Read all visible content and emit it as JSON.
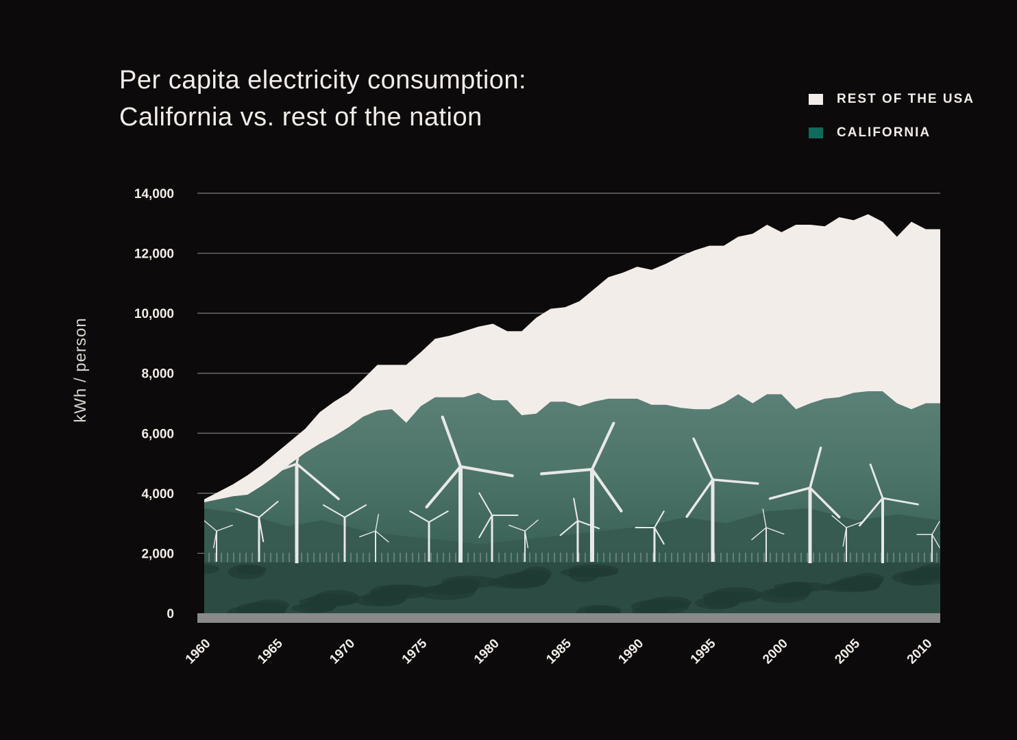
{
  "chart_data": {
    "type": "area",
    "title": [
      "Per capita electricity consumption:",
      "California vs. rest of the nation"
    ],
    "ylabel": "kWh / person",
    "xlabel": "",
    "ylim": [
      0,
      14000
    ],
    "xlim": [
      1960,
      2011
    ],
    "yticks": [
      0,
      2000,
      4000,
      6000,
      8000,
      10000,
      12000,
      14000
    ],
    "ytick_labels": [
      "0",
      "2,000",
      "4,000",
      "6,000",
      "8,000",
      "10,000",
      "12,000",
      "14,000"
    ],
    "xticks": [
      1960,
      1965,
      1970,
      1975,
      1980,
      1985,
      1990,
      1995,
      2000,
      2005,
      2010
    ],
    "xtick_labels": [
      "1960",
      "1965",
      "1970",
      "1975",
      "1980",
      "1985",
      "1990",
      "1995",
      "2000",
      "2005",
      "2010"
    ],
    "grid": true,
    "legend_position": "top-right",
    "x": [
      1960,
      1961,
      1962,
      1963,
      1964,
      1965,
      1966,
      1967,
      1968,
      1969,
      1970,
      1971,
      1972,
      1973,
      1974,
      1975,
      1976,
      1977,
      1978,
      1979,
      1980,
      1981,
      1982,
      1983,
      1984,
      1985,
      1986,
      1987,
      1988,
      1989,
      1990,
      1991,
      1992,
      1993,
      1994,
      1995,
      1996,
      1997,
      1998,
      1999,
      2000,
      2001,
      2002,
      2003,
      2004,
      2005,
      2006,
      2007,
      2008,
      2009,
      2010,
      2011
    ],
    "series": [
      {
        "name": "REST OF THE USA",
        "color": "#f3ede9",
        "values": [
          3800,
          4050,
          4300,
          4600,
          4950,
          5350,
          5750,
          6150,
          6700,
          7050,
          7350,
          7800,
          8280,
          8280,
          8280,
          8700,
          9150,
          9250,
          9400,
          9550,
          9650,
          9400,
          9400,
          9850,
          10150,
          10200,
          10400,
          10800,
          11200,
          11350,
          11550,
          11450,
          11650,
          11900,
          12100,
          12250,
          12250,
          12550,
          12650,
          12950,
          12700,
          12950,
          12950,
          12900,
          13200,
          13100,
          13300,
          13050,
          12550,
          13050,
          12800,
          12800
        ]
      },
      {
        "name": "CALIFORNIA",
        "color": "#0f6b5c",
        "values": [
          3700,
          3800,
          3900,
          3950,
          4250,
          4600,
          5000,
          5350,
          5650,
          5900,
          6200,
          6550,
          6750,
          6800,
          6350,
          6900,
          7200,
          7200,
          7200,
          7350,
          7100,
          7100,
          6600,
          6650,
          7050,
          7050,
          6900,
          7050,
          7150,
          7150,
          7150,
          6950,
          6950,
          6850,
          6800,
          6800,
          7000,
          7300,
          7000,
          7300,
          7300,
          6800,
          7000,
          7150,
          7200,
          7350,
          7400,
          7400,
          7000,
          6800,
          7000,
          7000
        ]
      }
    ]
  }
}
